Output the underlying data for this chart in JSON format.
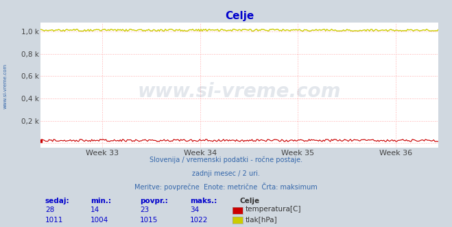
{
  "title": "Celje",
  "title_color": "#0000cc",
  "bg_color": "#d0d8e0",
  "plot_bg_color": "#ffffff",
  "grid_color": "#ffaaaa",
  "grid_linestyle": ":",
  "xlabel_weeks": [
    "Week 33",
    "Week 34",
    "Week 35",
    "Week 36"
  ],
  "ytick_vals": [
    0.0,
    0.2,
    0.4,
    0.6,
    0.8,
    1.0
  ],
  "ytick_labels": [
    "",
    "0,2 k",
    "0,4 k",
    "0,6 k",
    "0,8 k",
    "1,0 k"
  ],
  "ylim": [
    -0.04,
    1.08
  ],
  "xlim": [
    0,
    335
  ],
  "n_points": 336,
  "temp_min": 14,
  "temp_max": 34,
  "temp_mean": 23,
  "temp_current": 28,
  "pressure_min": 1004,
  "pressure_max": 1022,
  "pressure_mean": 1015,
  "pressure_current": 1011,
  "data_scale": 1000,
  "temp_color": "#cc0000",
  "pressure_color": "#cccc00",
  "watermark": "www.si-vreme.com",
  "watermark_color": "#1a3a6a",
  "watermark_alpha": 0.12,
  "subtitle1": "Slovenija / vremenski podatki - ročne postaje.",
  "subtitle2": "zadnji mesec / 2 uri.",
  "subtitle3": "Meritve: povprečne  Enote: metrične  Črta: maksimum",
  "subtitle_color": "#3366aa",
  "left_label": "www.si-vreme.com",
  "legend_title": "Celje",
  "legend_entries": [
    "temperatura[C]",
    "tlak[hPa]"
  ],
  "legend_colors": [
    "#cc0000",
    "#cccc00"
  ],
  "table_headers": [
    "sedaj:",
    "min.:",
    "povpr.:",
    "maks.:"
  ],
  "table_values_temp": [
    28,
    14,
    23,
    34
  ],
  "table_values_pressure": [
    1011,
    1004,
    1015,
    1022
  ],
  "table_color": "#0000cc",
  "figwidth": 6.59,
  "figheight": 3.32,
  "dpi": 100
}
